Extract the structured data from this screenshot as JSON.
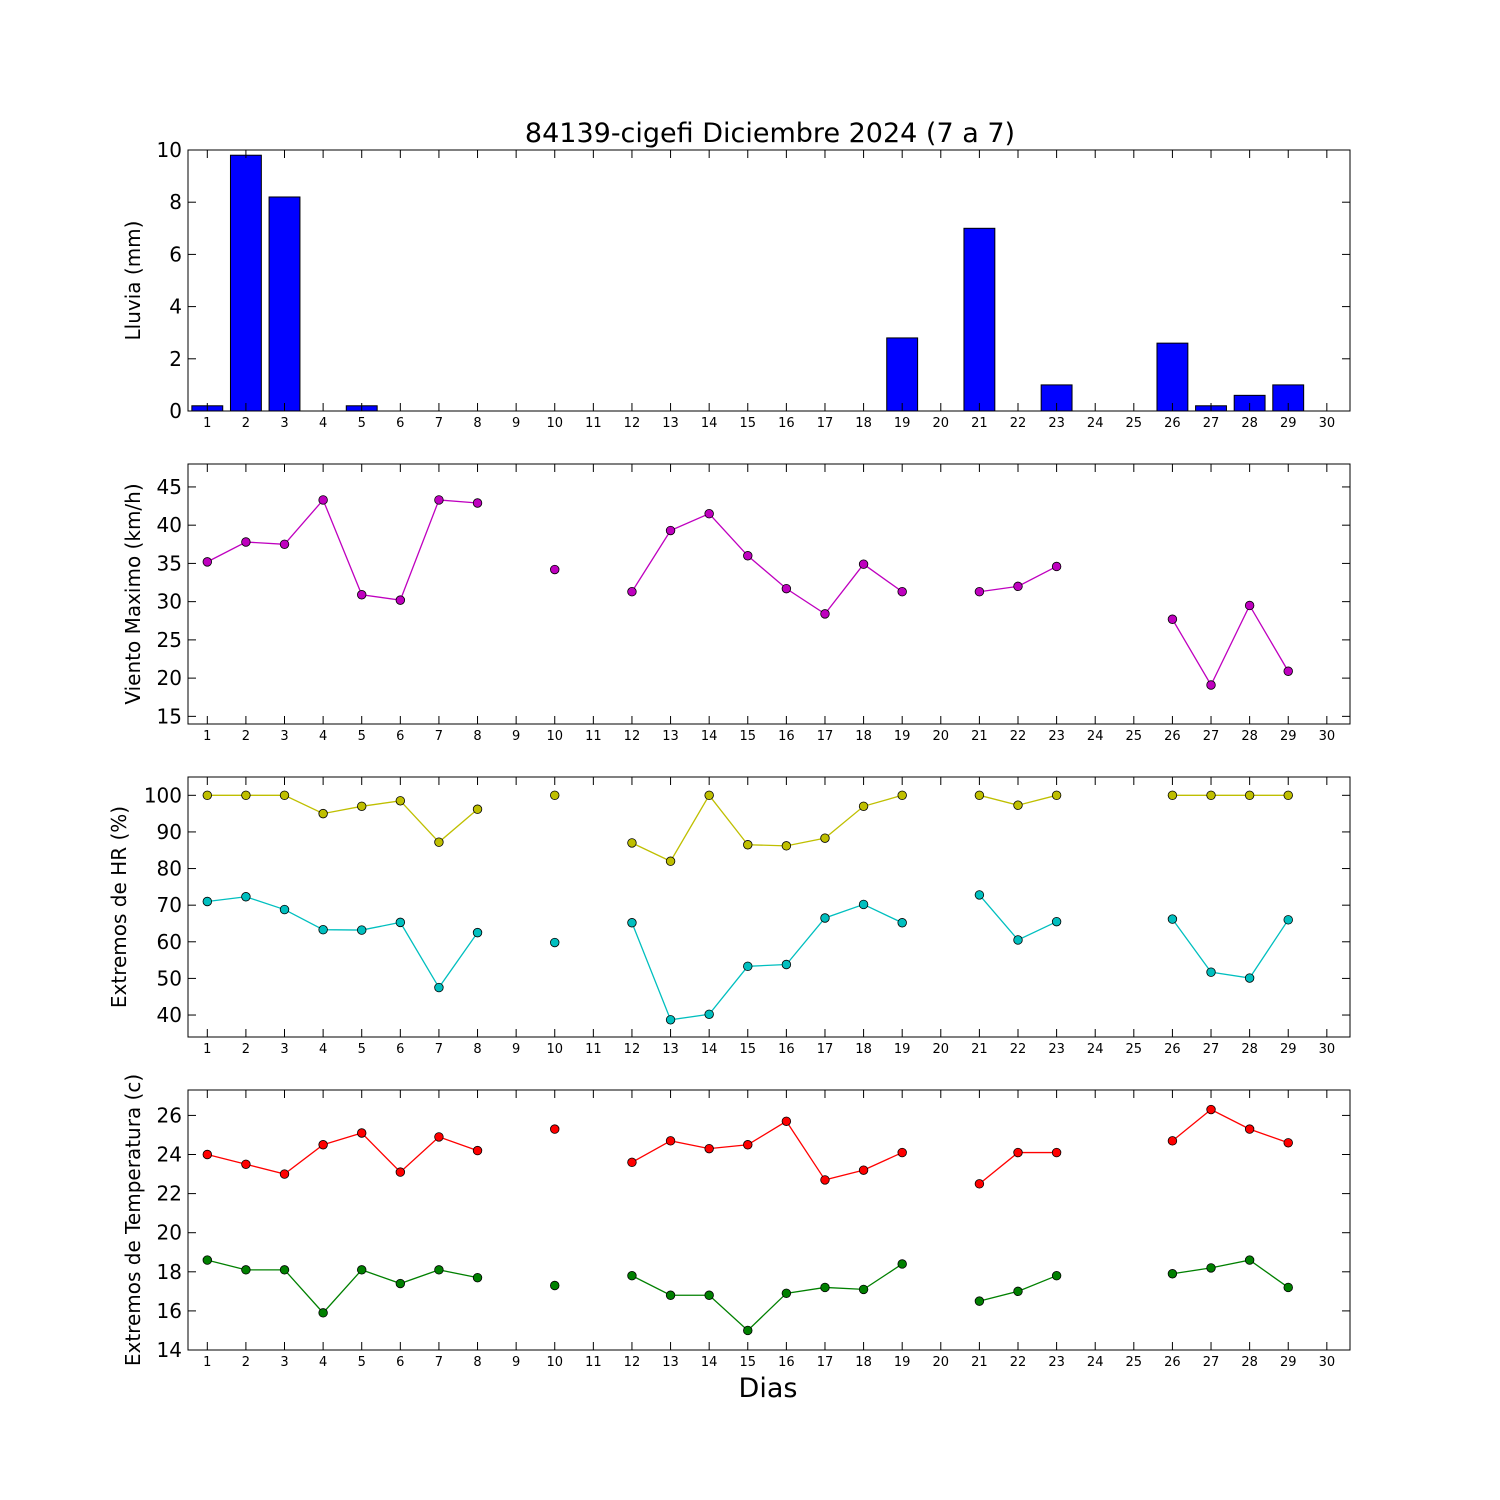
{
  "figure": {
    "title": "84139-cigefi Diciembre 2024  (7 a 7)",
    "xlabel": "Dias"
  },
  "chart_data": [
    {
      "type": "bar",
      "name": "lluvia",
      "ylabel": "Lluvia (mm)",
      "xlim": [
        0.5,
        30.6
      ],
      "ylim": [
        0,
        10
      ],
      "yticks": [
        0,
        2,
        4,
        6,
        8,
        10
      ],
      "xticks": [
        1,
        2,
        3,
        4,
        5,
        6,
        7,
        8,
        9,
        10,
        11,
        12,
        13,
        14,
        15,
        16,
        17,
        18,
        19,
        20,
        21,
        22,
        23,
        24,
        25,
        26,
        27,
        28,
        29,
        30
      ],
      "color": "#0000ff",
      "x": [
        1,
        2,
        3,
        4,
        5,
        6,
        7,
        8,
        9,
        10,
        11,
        12,
        13,
        14,
        15,
        16,
        17,
        18,
        19,
        20,
        21,
        22,
        23,
        24,
        25,
        26,
        27,
        28,
        29,
        30
      ],
      "values": [
        0.2,
        9.8,
        8.2,
        0,
        0.2,
        0,
        0,
        0,
        0,
        0,
        0,
        0,
        0,
        0,
        0,
        0,
        0,
        0,
        2.8,
        0,
        7.0,
        0,
        1.0,
        0,
        0,
        2.6,
        0.2,
        0.6,
        1.0,
        0
      ]
    },
    {
      "type": "line",
      "name": "viento",
      "ylabel": "Viento Maximo (km/h)",
      "xlim": [
        0.5,
        30.6
      ],
      "ylim": [
        14,
        48
      ],
      "yticks": [
        15,
        20,
        25,
        30,
        35,
        40,
        45
      ],
      "xticks": [
        1,
        2,
        3,
        4,
        5,
        6,
        7,
        8,
        9,
        10,
        11,
        12,
        13,
        14,
        15,
        16,
        17,
        18,
        19,
        20,
        21,
        22,
        23,
        24,
        25,
        26,
        27,
        28,
        29,
        30
      ],
      "series": [
        {
          "color": "#bf00bf",
          "x": [
            1,
            2,
            3,
            4,
            5,
            6,
            7,
            8,
            9,
            10,
            11,
            12,
            13,
            14,
            15,
            16,
            17,
            18,
            19,
            20,
            21,
            22,
            23,
            24,
            25,
            26,
            27,
            28,
            29,
            30
          ],
          "values": [
            35.2,
            37.8,
            37.5,
            43.3,
            30.9,
            30.2,
            43.3,
            42.9,
            null,
            34.2,
            null,
            31.3,
            39.3,
            41.5,
            36.0,
            31.7,
            28.4,
            34.9,
            31.3,
            null,
            31.3,
            32.0,
            34.6,
            null,
            null,
            27.7,
            19.1,
            29.5,
            20.9,
            null
          ]
        }
      ]
    },
    {
      "type": "line",
      "name": "humedad",
      "ylabel": "Extremos de HR (%)",
      "xlim": [
        0.5,
        30.6
      ],
      "ylim": [
        34,
        105
      ],
      "yticks": [
        40,
        50,
        60,
        70,
        80,
        90,
        100
      ],
      "xticks": [
        1,
        2,
        3,
        4,
        5,
        6,
        7,
        8,
        9,
        10,
        11,
        12,
        13,
        14,
        15,
        16,
        17,
        18,
        19,
        20,
        21,
        22,
        23,
        24,
        25,
        26,
        27,
        28,
        29,
        30
      ],
      "series": [
        {
          "color": "#bfbf00",
          "x": [
            1,
            2,
            3,
            4,
            5,
            6,
            7,
            8,
            9,
            10,
            11,
            12,
            13,
            14,
            15,
            16,
            17,
            18,
            19,
            20,
            21,
            22,
            23,
            24,
            25,
            26,
            27,
            28,
            29,
            30
          ],
          "values": [
            100,
            100,
            100,
            95,
            97,
            98.5,
            87.2,
            96.2,
            null,
            100,
            null,
            87,
            82,
            100,
            86.5,
            86.2,
            88.3,
            97,
            100,
            null,
            100,
            97.3,
            100,
            null,
            null,
            100,
            100,
            100,
            100,
            null
          ]
        },
        {
          "color": "#00bfbf",
          "x": [
            1,
            2,
            3,
            4,
            5,
            6,
            7,
            8,
            9,
            10,
            11,
            12,
            13,
            14,
            15,
            16,
            17,
            18,
            19,
            20,
            21,
            22,
            23,
            24,
            25,
            26,
            27,
            28,
            29,
            30
          ],
          "values": [
            71,
            72.3,
            68.8,
            63.3,
            63.2,
            65.3,
            47.5,
            62.5,
            null,
            59.8,
            null,
            65.2,
            38.7,
            40.2,
            53.3,
            53.8,
            66.5,
            70.2,
            65.2,
            null,
            72.8,
            60.5,
            65.5,
            null,
            null,
            66.2,
            51.7,
            50.1,
            66,
            null
          ]
        }
      ]
    },
    {
      "type": "line",
      "name": "temperatura",
      "ylabel": "Extremos de Temperatura (c)",
      "xlim": [
        0.5,
        30.6
      ],
      "ylim": [
        14,
        27.3
      ],
      "yticks": [
        14,
        16,
        18,
        20,
        22,
        24,
        26
      ],
      "xticks": [
        1,
        2,
        3,
        4,
        5,
        6,
        7,
        8,
        9,
        10,
        11,
        12,
        13,
        14,
        15,
        16,
        17,
        18,
        19,
        20,
        21,
        22,
        23,
        24,
        25,
        26,
        27,
        28,
        29,
        30
      ],
      "series": [
        {
          "color": "#ff0000",
          "x": [
            1,
            2,
            3,
            4,
            5,
            6,
            7,
            8,
            9,
            10,
            11,
            12,
            13,
            14,
            15,
            16,
            17,
            18,
            19,
            20,
            21,
            22,
            23,
            24,
            25,
            26,
            27,
            28,
            29,
            30
          ],
          "values": [
            24.0,
            23.5,
            23.0,
            24.5,
            25.1,
            23.1,
            24.9,
            24.2,
            null,
            25.3,
            null,
            23.6,
            24.7,
            24.3,
            24.5,
            25.7,
            22.7,
            23.2,
            24.1,
            null,
            22.5,
            24.1,
            24.1,
            null,
            null,
            24.7,
            26.3,
            25.3,
            24.6,
            null
          ]
        },
        {
          "color": "#008000",
          "x": [
            1,
            2,
            3,
            4,
            5,
            6,
            7,
            8,
            9,
            10,
            11,
            12,
            13,
            14,
            15,
            16,
            17,
            18,
            19,
            20,
            21,
            22,
            23,
            24,
            25,
            26,
            27,
            28,
            29,
            30
          ],
          "values": [
            18.6,
            18.1,
            18.1,
            15.9,
            18.1,
            17.4,
            18.1,
            17.7,
            null,
            17.3,
            null,
            17.8,
            16.8,
            16.8,
            15.0,
            16.9,
            17.2,
            17.1,
            18.4,
            null,
            16.5,
            17.0,
            17.8,
            null,
            null,
            17.9,
            18.2,
            18.6,
            17.2,
            null
          ]
        }
      ]
    }
  ]
}
